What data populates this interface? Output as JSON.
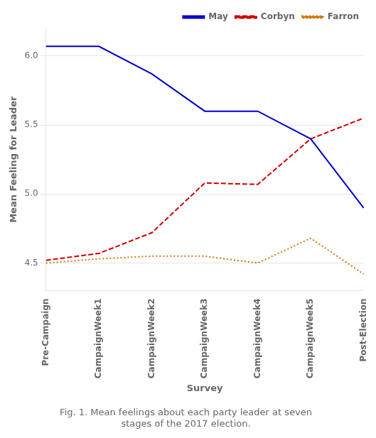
{
  "chart_data": {
    "type": "line",
    "categories": [
      "Pre-Campaign",
      "CampaignWeek1",
      "CampaignWeek2",
      "CampaignWeek3",
      "CampaignWeek4",
      "CampaignWeek5",
      "Post-Election"
    ],
    "series": [
      {
        "name": "May",
        "color": "#0000CC",
        "line_style": "solid",
        "values": [
          6.07,
          6.07,
          5.87,
          5.6,
          5.6,
          5.4,
          4.9
        ]
      },
      {
        "name": "Corbyn",
        "color": "#CC0000",
        "line_style": "dashed",
        "values": [
          4.52,
          4.57,
          4.72,
          5.08,
          5.07,
          5.4,
          5.55
        ]
      },
      {
        "name": "Farron",
        "color": "#CC7700",
        "line_style": "dotted",
        "values": [
          4.5,
          4.53,
          4.55,
          4.55,
          4.5,
          4.68,
          4.42
        ]
      }
    ],
    "xlabel": "Survey",
    "ylabel": "Mean Feeling for Leader",
    "ylim": [
      4.3,
      6.2
    ],
    "yticks": [
      4.5,
      {
        "value": 5,
        "label": "5.0"
      },
      5.5,
      {
        "value": 6,
        "label": "6.0"
      }
    ],
    "grid": "y",
    "legend": "upper right",
    "annotations": [
      "Fig. 1. Mean feelings about each party leader at seven",
      "stages of the 2017 election."
    ]
  }
}
